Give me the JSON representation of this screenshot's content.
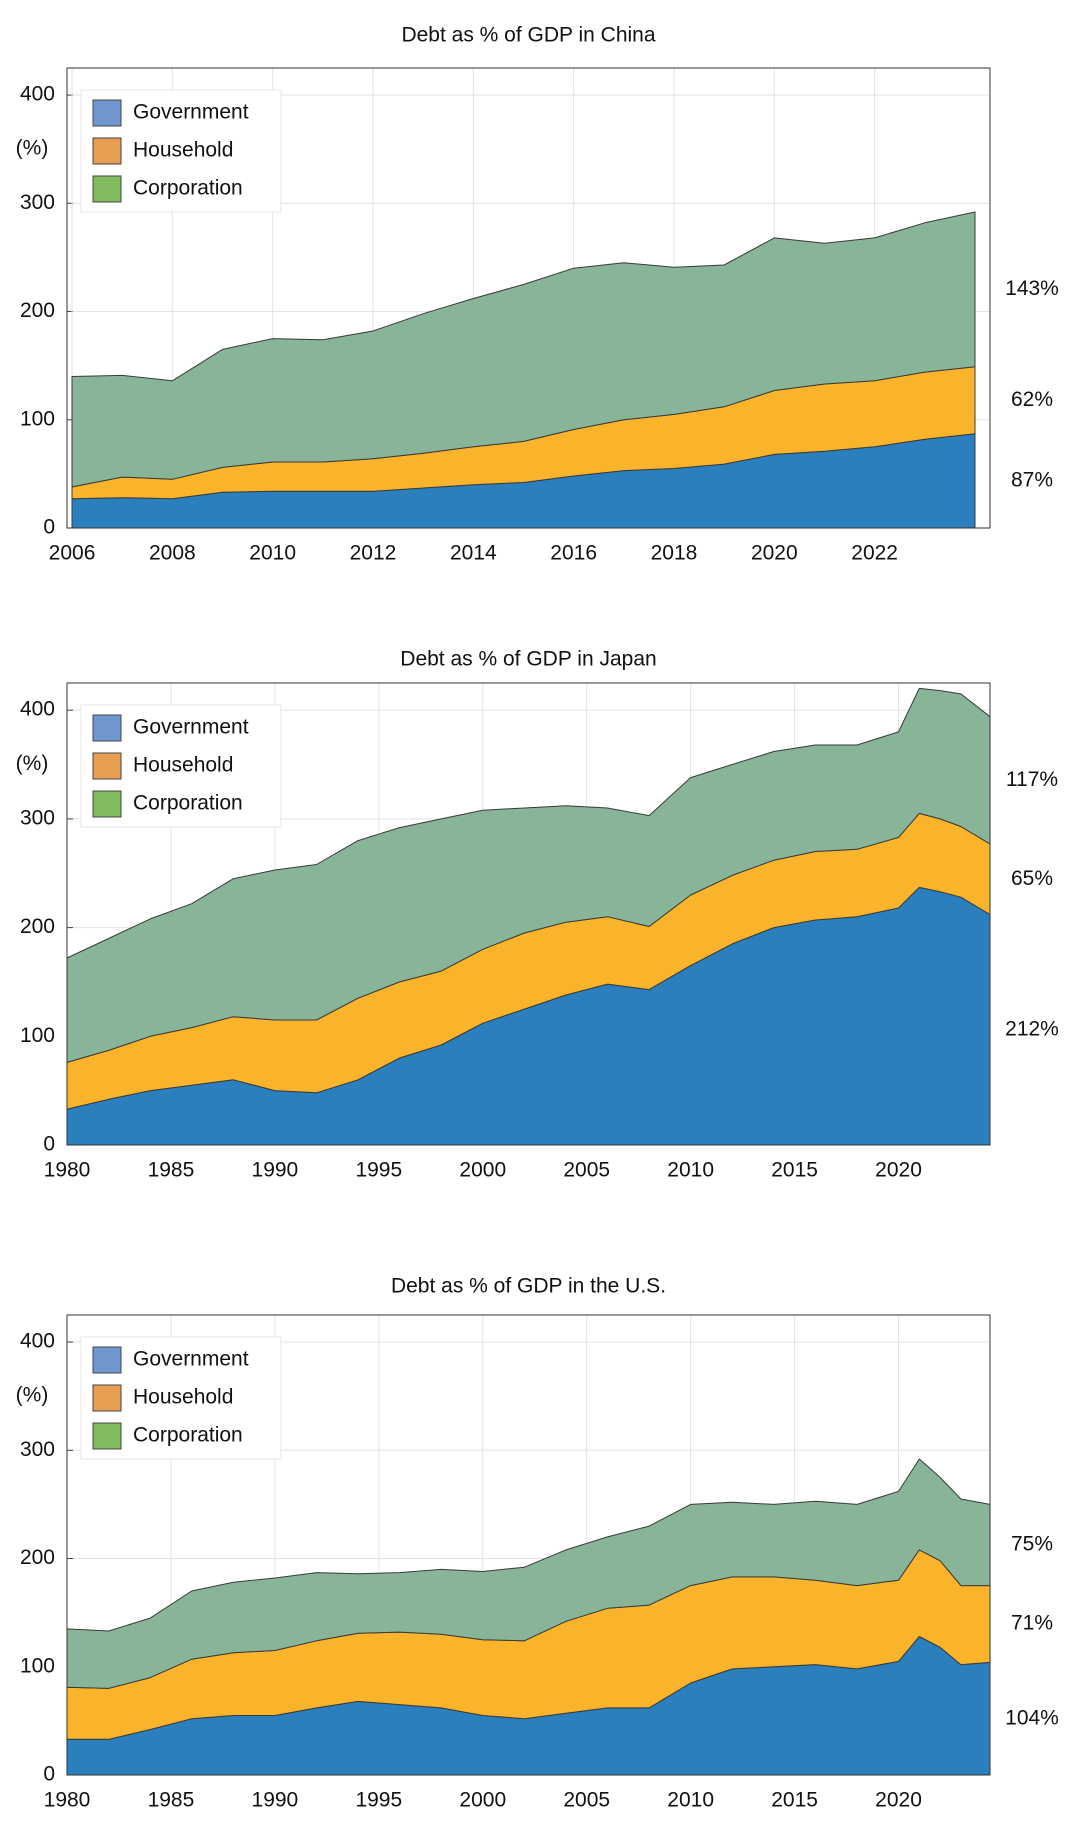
{
  "chart_data": [
    {
      "type": "area",
      "stacked": true,
      "title": "Debt as % of GDP in China",
      "ylabel": "(%)",
      "x": [
        2006,
        2007,
        2008,
        2009,
        2010,
        2011,
        2012,
        2013,
        2014,
        2015,
        2016,
        2017,
        2018,
        2019,
        2020,
        2021,
        2022,
        2023,
        2024
      ],
      "xlim": [
        2005.9,
        2024.3
      ],
      "xticks": [
        2006,
        2008,
        2010,
        2012,
        2014,
        2016,
        2018,
        2020,
        2022
      ],
      "ylim": [
        0,
        425
      ],
      "yticks": [
        0,
        100,
        200,
        300,
        400
      ],
      "grid": true,
      "legend": "upper left",
      "series": [
        {
          "name": "Government",
          "color": "#2b7fbd",
          "legend_color": "#7096cf",
          "end_label": "87%",
          "values": [
            27,
            28,
            27,
            33,
            34,
            34,
            34,
            37,
            40,
            42,
            48,
            53,
            55,
            59,
            68,
            71,
            75,
            82,
            87
          ]
        },
        {
          "name": "Household",
          "color": "#f9b42c",
          "legend_color": "#e79d52",
          "end_label": "62%",
          "values": [
            11,
            19,
            18,
            23,
            27,
            27,
            30,
            32,
            35,
            38,
            43,
            47,
            50,
            53,
            59,
            62,
            61,
            62,
            62
          ]
        },
        {
          "name": "Corporation",
          "color": "#88b497",
          "legend_color": "#82bb5e",
          "end_label": "143%",
          "values": [
            102,
            94,
            91,
            109,
            114,
            113,
            118,
            129,
            137,
            145,
            149,
            145,
            136,
            131,
            141,
            130,
            132,
            138,
            143
          ]
        }
      ]
    },
    {
      "type": "area",
      "stacked": true,
      "title": "Debt as % of GDP in Japan",
      "ylabel": "(%)",
      "x": [
        1980,
        1982,
        1984,
        1986,
        1988,
        1990,
        1992,
        1994,
        1996,
        1998,
        2000,
        2002,
        2004,
        2006,
        2008,
        2010,
        2012,
        2014,
        2016,
        2018,
        2020,
        2021,
        2022,
        2023,
        2024.4
      ],
      "xlim": [
        1980,
        2024.4
      ],
      "xticks": [
        1980,
        1985,
        1990,
        1995,
        2000,
        2005,
        2010,
        2015,
        2020
      ],
      "ylim": [
        0,
        425
      ],
      "yticks": [
        0,
        100,
        200,
        300,
        400
      ],
      "grid": true,
      "legend": "upper left",
      "series": [
        {
          "name": "Government",
          "color": "#2b7fbd",
          "legend_color": "#7096cf",
          "end_label": "212%",
          "values": [
            33,
            42,
            50,
            55,
            60,
            50,
            48,
            60,
            80,
            92,
            112,
            125,
            138,
            148,
            143,
            165,
            185,
            200,
            207,
            210,
            218,
            237,
            233,
            228,
            212
          ]
        },
        {
          "name": "Household",
          "color": "#f9b42c",
          "legend_color": "#e79d52",
          "end_label": "65%",
          "values": [
            43,
            45,
            50,
            53,
            58,
            65,
            67,
            75,
            70,
            68,
            68,
            70,
            67,
            62,
            58,
            65,
            63,
            62,
            63,
            62,
            65,
            68,
            67,
            65,
            65
          ]
        },
        {
          "name": "Corporation",
          "color": "#88b497",
          "legend_color": "#82bb5e",
          "end_label": "117%",
          "values": [
            96,
            103,
            108,
            114,
            127,
            138,
            143,
            145,
            142,
            140,
            128,
            115,
            107,
            100,
            102,
            108,
            102,
            100,
            98,
            96,
            97,
            115,
            118,
            122,
            117
          ]
        }
      ]
    },
    {
      "type": "area",
      "stacked": true,
      "title": "Debt as % of GDP in the U.S.",
      "ylabel": "(%)",
      "x": [
        1980,
        1982,
        1984,
        1986,
        1988,
        1990,
        1992,
        1994,
        1996,
        1998,
        2000,
        2002,
        2004,
        2006,
        2008,
        2010,
        2012,
        2014,
        2016,
        2018,
        2020,
        2021,
        2022,
        2023,
        2024.4
      ],
      "xlim": [
        1980,
        2024.4
      ],
      "xticks": [
        1980,
        1985,
        1990,
        1995,
        2000,
        2005,
        2010,
        2015,
        2020
      ],
      "ylim": [
        0,
        425
      ],
      "yticks": [
        0,
        100,
        200,
        300,
        400
      ],
      "grid": true,
      "legend": "upper left",
      "series": [
        {
          "name": "Government",
          "color": "#2b7fbd",
          "legend_color": "#7096cf",
          "end_label": "104%",
          "values": [
            33,
            33,
            42,
            52,
            55,
            55,
            62,
            68,
            65,
            62,
            55,
            52,
            57,
            62,
            62,
            85,
            98,
            100,
            102,
            98,
            105,
            128,
            118,
            102,
            104
          ]
        },
        {
          "name": "Household",
          "color": "#f9b42c",
          "legend_color": "#e79d52",
          "end_label": "71%",
          "values": [
            48,
            47,
            48,
            55,
            58,
            60,
            62,
            63,
            67,
            68,
            70,
            72,
            85,
            92,
            95,
            90,
            85,
            83,
            78,
            77,
            75,
            80,
            80,
            73,
            71
          ]
        },
        {
          "name": "Corporation",
          "color": "#88b497",
          "legend_color": "#82bb5e",
          "end_label": "75%",
          "values": [
            54,
            53,
            55,
            63,
            65,
            67,
            63,
            55,
            55,
            60,
            63,
            68,
            66,
            66,
            73,
            75,
            69,
            67,
            73,
            75,
            82,
            84,
            77,
            80,
            75
          ]
        }
      ]
    }
  ]
}
